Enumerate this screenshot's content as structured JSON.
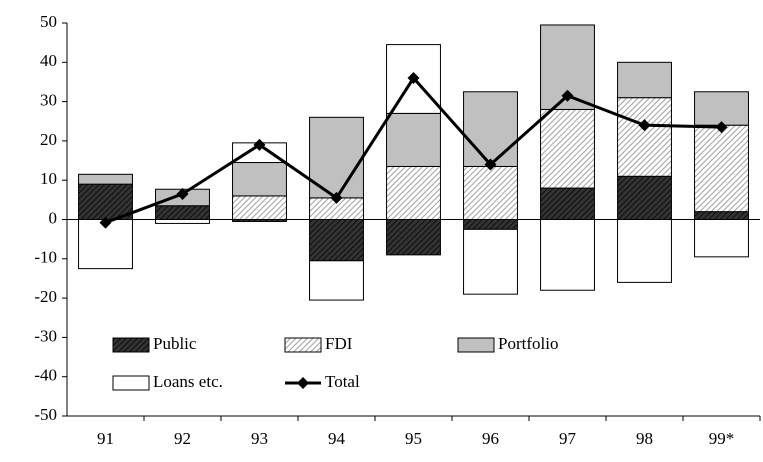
{
  "chart_data": {
    "type": "bar",
    "stacked": true,
    "categories": [
      "91",
      "92",
      "93",
      "94",
      "95",
      "96",
      "97",
      "98",
      "99*"
    ],
    "series": [
      {
        "name": "Public",
        "color": "#333333",
        "values": [
          9,
          3.5,
          -0.5,
          -10.5,
          -9,
          -2.5,
          8,
          11,
          2
        ]
      },
      {
        "name": "FDI",
        "color": "#a0a0a0",
        "values": [
          0,
          0,
          6,
          5.5,
          13.5,
          13.5,
          20,
          20,
          22
        ]
      },
      {
        "name": "Portfolio",
        "color": "#c0c0c0",
        "values": [
          2.5,
          4.2,
          8.5,
          20.5,
          13.5,
          19,
          21.5,
          9,
          8.5
        ]
      },
      {
        "name": "Loans etc.",
        "color": "#ffffff",
        "values": [
          -12.5,
          -1,
          5,
          -10,
          17.5,
          -16.5,
          -18,
          -16,
          -9.5
        ]
      },
      {
        "name": "Total",
        "type": "line",
        "color": "#000000",
        "values": [
          -0.8,
          6.5,
          19,
          5.5,
          36,
          14,
          31.5,
          24,
          23.5
        ]
      }
    ],
    "ylim": [
      -50,
      50
    ],
    "yticks": [
      -50,
      -40,
      -30,
      -20,
      -10,
      0,
      10,
      20,
      30,
      40,
      50
    ],
    "grid": false
  }
}
